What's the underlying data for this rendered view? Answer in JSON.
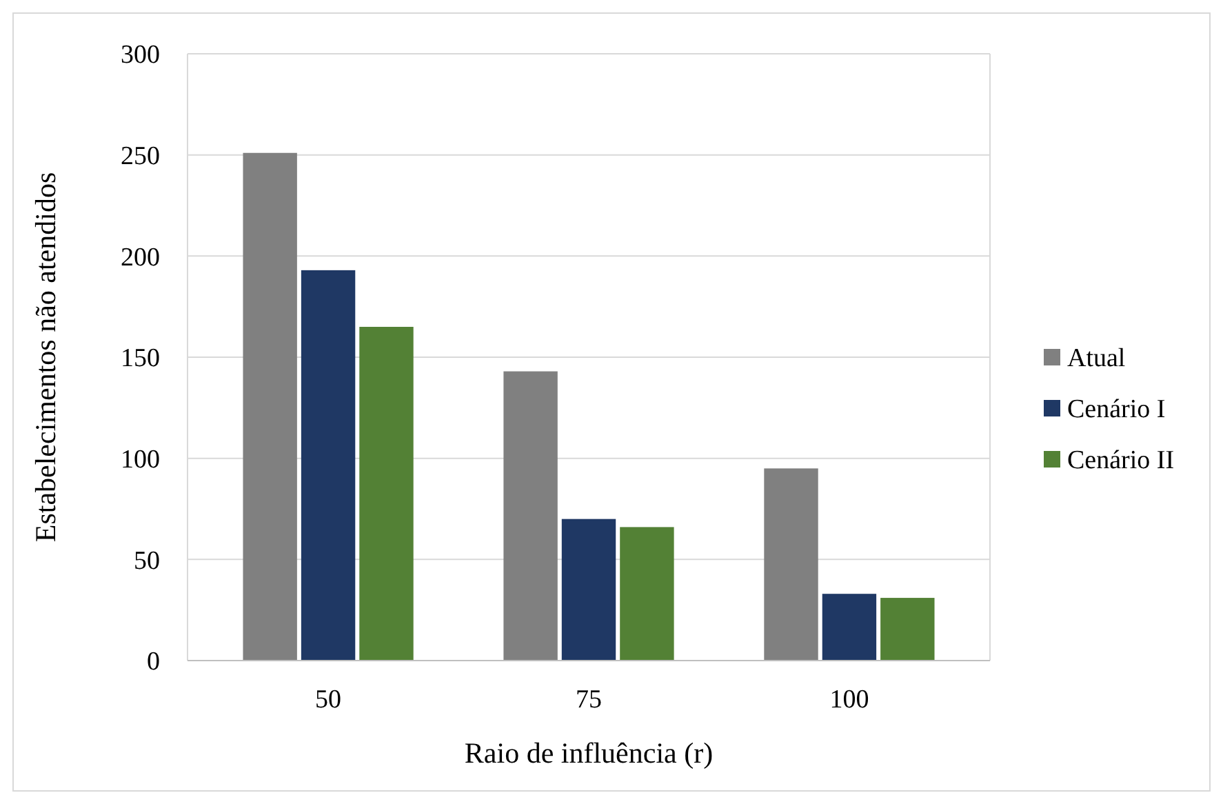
{
  "chart_data": {
    "type": "bar",
    "xlabel": "Raio de influência (r)",
    "ylabel": "Estabelecimentos não atendidos",
    "categories": [
      "50",
      "75",
      "100"
    ],
    "series": [
      {
        "name": "Atual",
        "color": "#808080",
        "values": [
          251,
          143,
          95
        ]
      },
      {
        "name": "Cenário I",
        "color": "#1f3864",
        "values": [
          193,
          70,
          33
        ]
      },
      {
        "name": "Cenário II",
        "color": "#538135",
        "values": [
          165,
          66,
          31
        ]
      }
    ],
    "ylim": [
      0,
      300
    ],
    "yticks": [
      0,
      50,
      100,
      150,
      200,
      250,
      300
    ],
    "grid": "y",
    "legend": "right"
  }
}
